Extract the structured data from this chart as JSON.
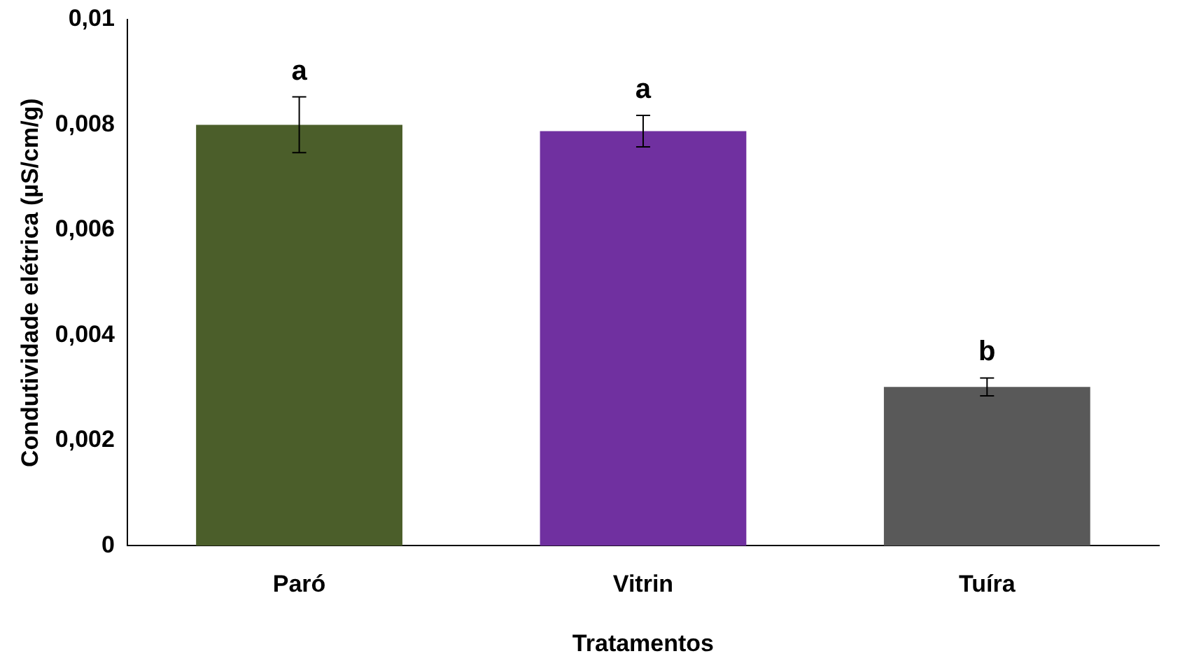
{
  "chart_data": {
    "type": "bar",
    "xlabel": "Tratamentos",
    "ylabel": "Condutividade elétrica (µS/cm/g)",
    "categories": [
      "Paró",
      "Vitrin",
      "Tuíra"
    ],
    "values": [
      0.008,
      0.00788,
      0.00302
    ],
    "colors": [
      "#4b5e2a",
      "#7030a0",
      "#595959"
    ],
    "errors": [
      0.00053,
      0.0003,
      0.00017
    ],
    "ylim": [
      0,
      0.01
    ],
    "yticks": [
      {
        "value": 0,
        "label": "0"
      },
      {
        "value": 0.002,
        "label": "0,002"
      },
      {
        "value": 0.004,
        "label": "0,004"
      },
      {
        "value": 0.006,
        "label": "0,006"
      },
      {
        "value": 0.008,
        "label": "0,008"
      },
      {
        "value": 0.01,
        "label": "0,01"
      }
    ],
    "grid": false,
    "legend": false,
    "annotations": [
      {
        "text": "a",
        "x": "Paró",
        "y": 0.00853
      },
      {
        "text": "a",
        "x": "Vitrin",
        "y": 0.00818
      },
      {
        "text": "b",
        "x": "Tuíra",
        "y": 0.00319
      }
    ]
  }
}
